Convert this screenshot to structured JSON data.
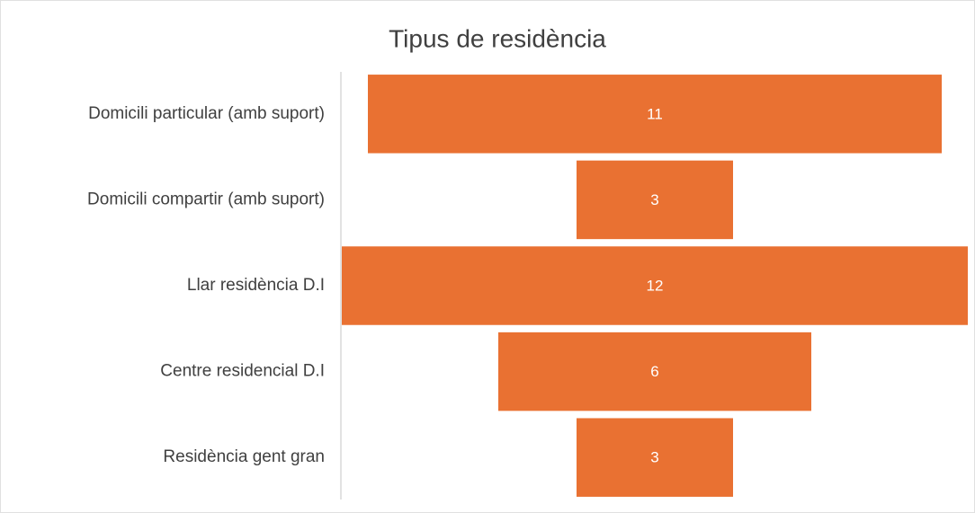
{
  "chart_data": {
    "type": "funnel",
    "title": "Tipus de residència",
    "categories": [
      "Domicili particular (amb suport)",
      "Domicili compartir (amb suport)",
      "Llar residència D.I",
      "Centre residencial D.I",
      "Residència gent gran"
    ],
    "values": [
      11,
      3,
      12,
      6,
      3
    ],
    "color": "#e97132"
  }
}
